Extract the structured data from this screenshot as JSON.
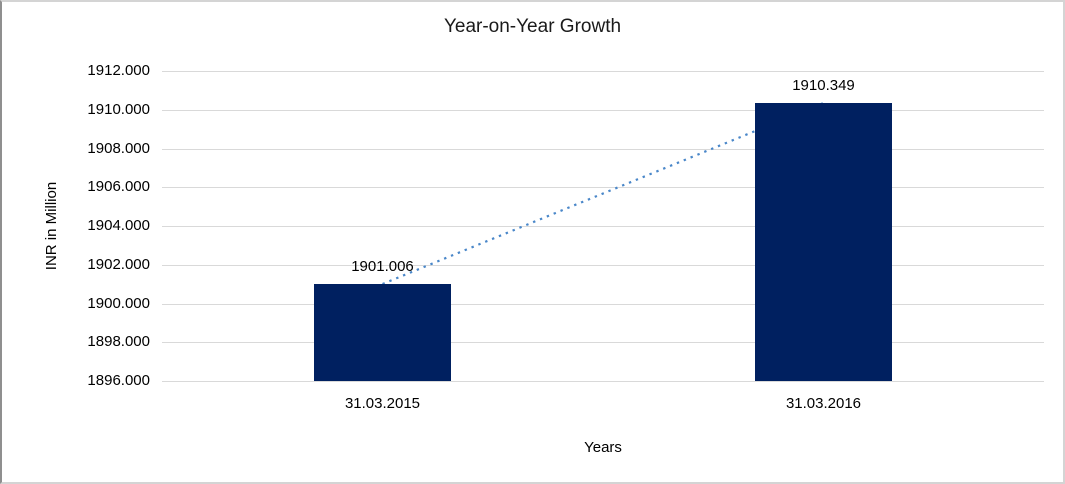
{
  "chart_data": {
    "type": "bar",
    "title": "Year-on-Year Growth",
    "xlabel": "Years",
    "ylabel": "INR in Million",
    "categories": [
      "31.03.2015",
      "31.03.2016"
    ],
    "values": [
      1901.006,
      1910.349
    ],
    "data_labels": [
      "1901.006",
      "1910.349"
    ],
    "ylim": [
      1896,
      1912
    ],
    "ytick_step": 2,
    "ytick_labels": [
      "1912.000",
      "1910.000",
      "1908.000",
      "1906.000",
      "1904.000",
      "1902.000",
      "1900.000",
      "1898.000",
      "1896.000"
    ],
    "grid": true,
    "legend": "none",
    "trendline": {
      "type": "linear",
      "style": "dotted"
    },
    "colors": {
      "bar": "#002060",
      "trendline": "#4a87c9",
      "gridline": "#d9d9d9",
      "text": "#000000",
      "frame": "#d4d4d4"
    }
  }
}
